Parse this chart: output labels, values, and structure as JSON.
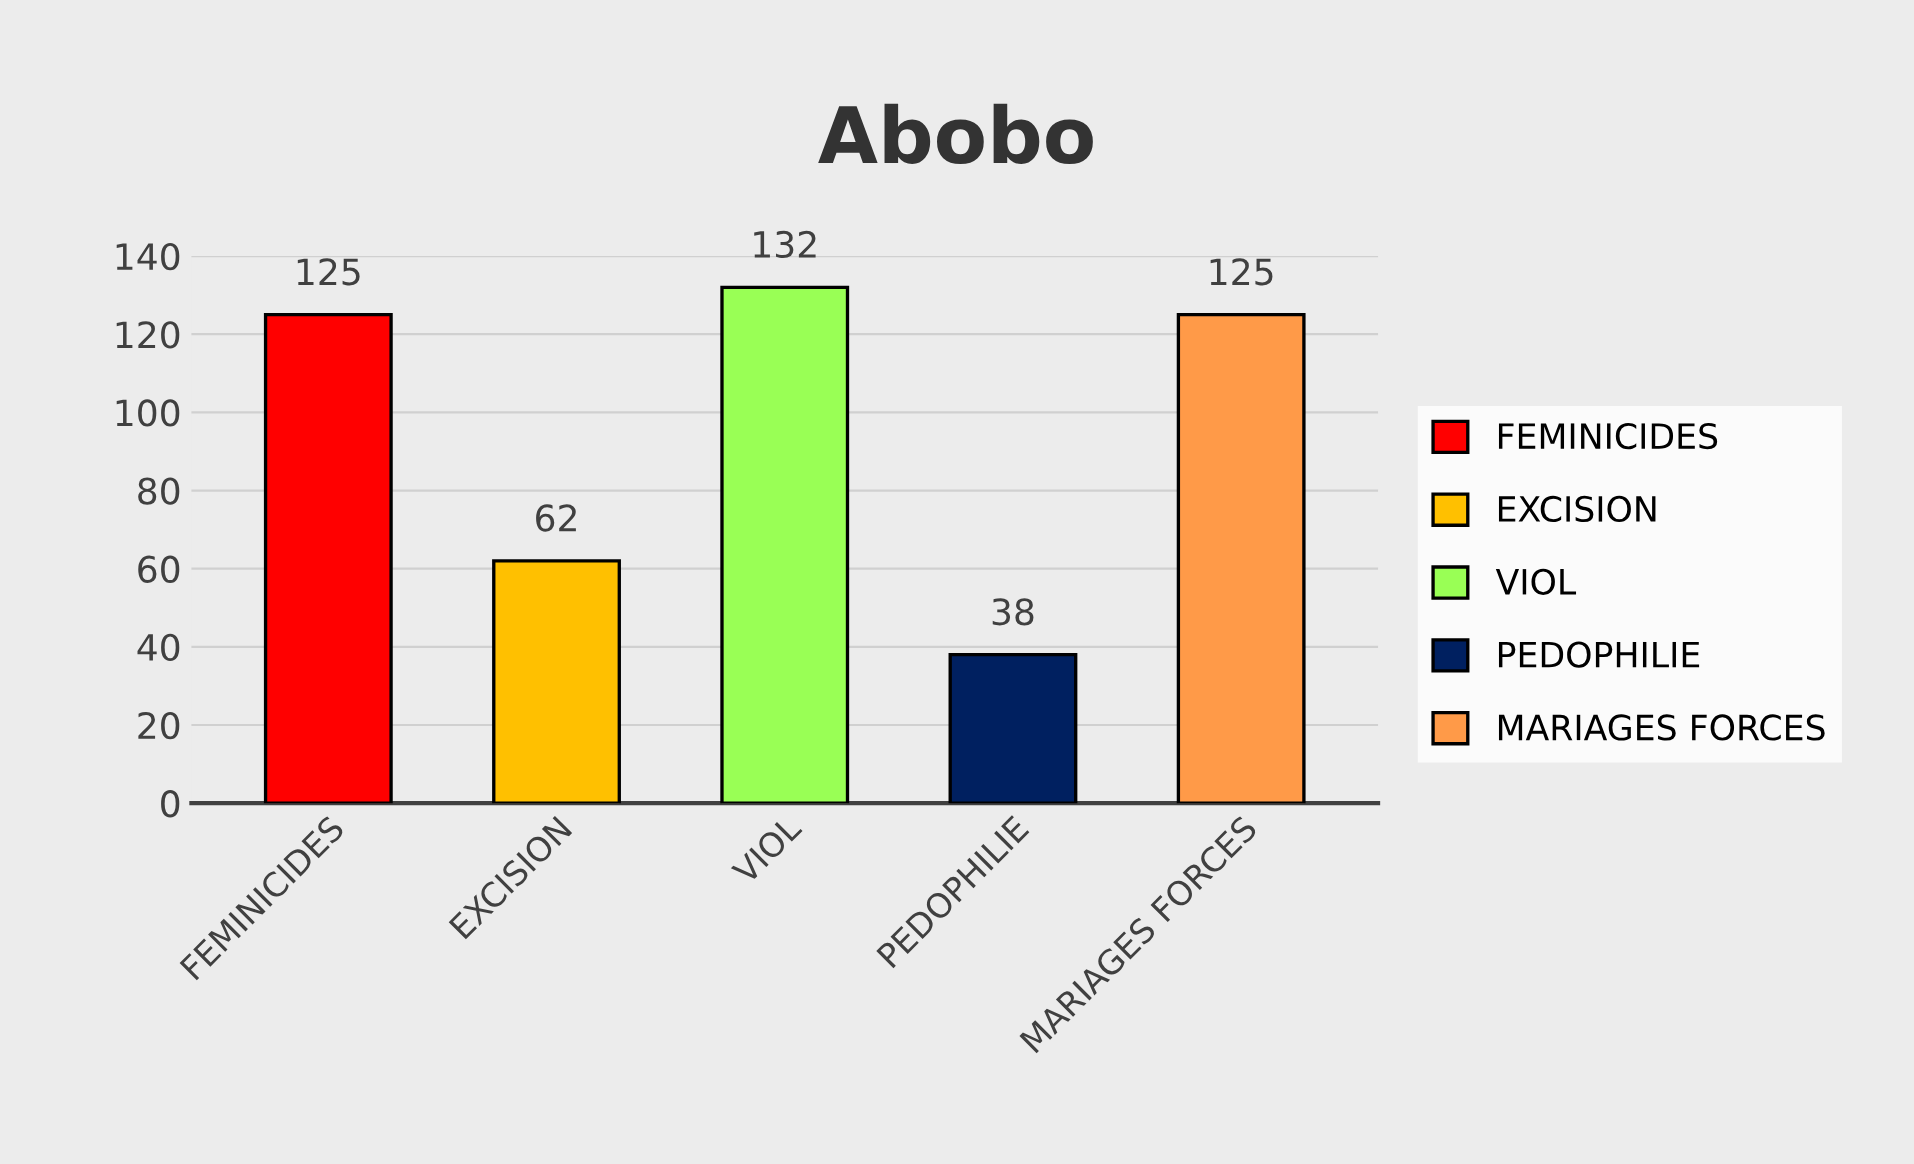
{
  "chart_data": {
    "type": "bar",
    "title": "Abobo",
    "categories": [
      "FEMINICIDES",
      "EXCISION",
      "VIOL",
      "PEDOPHILIE",
      "MARIAGES FORCES"
    ],
    "series": [
      {
        "name": "FEMINICIDES",
        "color": "#ff0000",
        "values": [
          125,
          null,
          null,
          null,
          null
        ]
      },
      {
        "name": "EXCISION",
        "color": "#ffc000",
        "values": [
          null,
          62,
          null,
          null,
          null
        ]
      },
      {
        "name": "VIOL",
        "color": "#99ff55",
        "values": [
          null,
          null,
          132,
          null,
          null
        ]
      },
      {
        "name": "PEDOPHILIE",
        "color": "#002060",
        "values": [
          null,
          null,
          null,
          38,
          null
        ]
      },
      {
        "name": "MARIAGES FORCES",
        "color": "#ff9a48",
        "values": [
          null,
          null,
          null,
          null,
          125
        ]
      }
    ],
    "ylim": [
      0,
      140
    ],
    "yticks": [
      0,
      20,
      40,
      60,
      80,
      100,
      120,
      140
    ],
    "data_labels": true,
    "grid": "y",
    "legend": "right"
  }
}
